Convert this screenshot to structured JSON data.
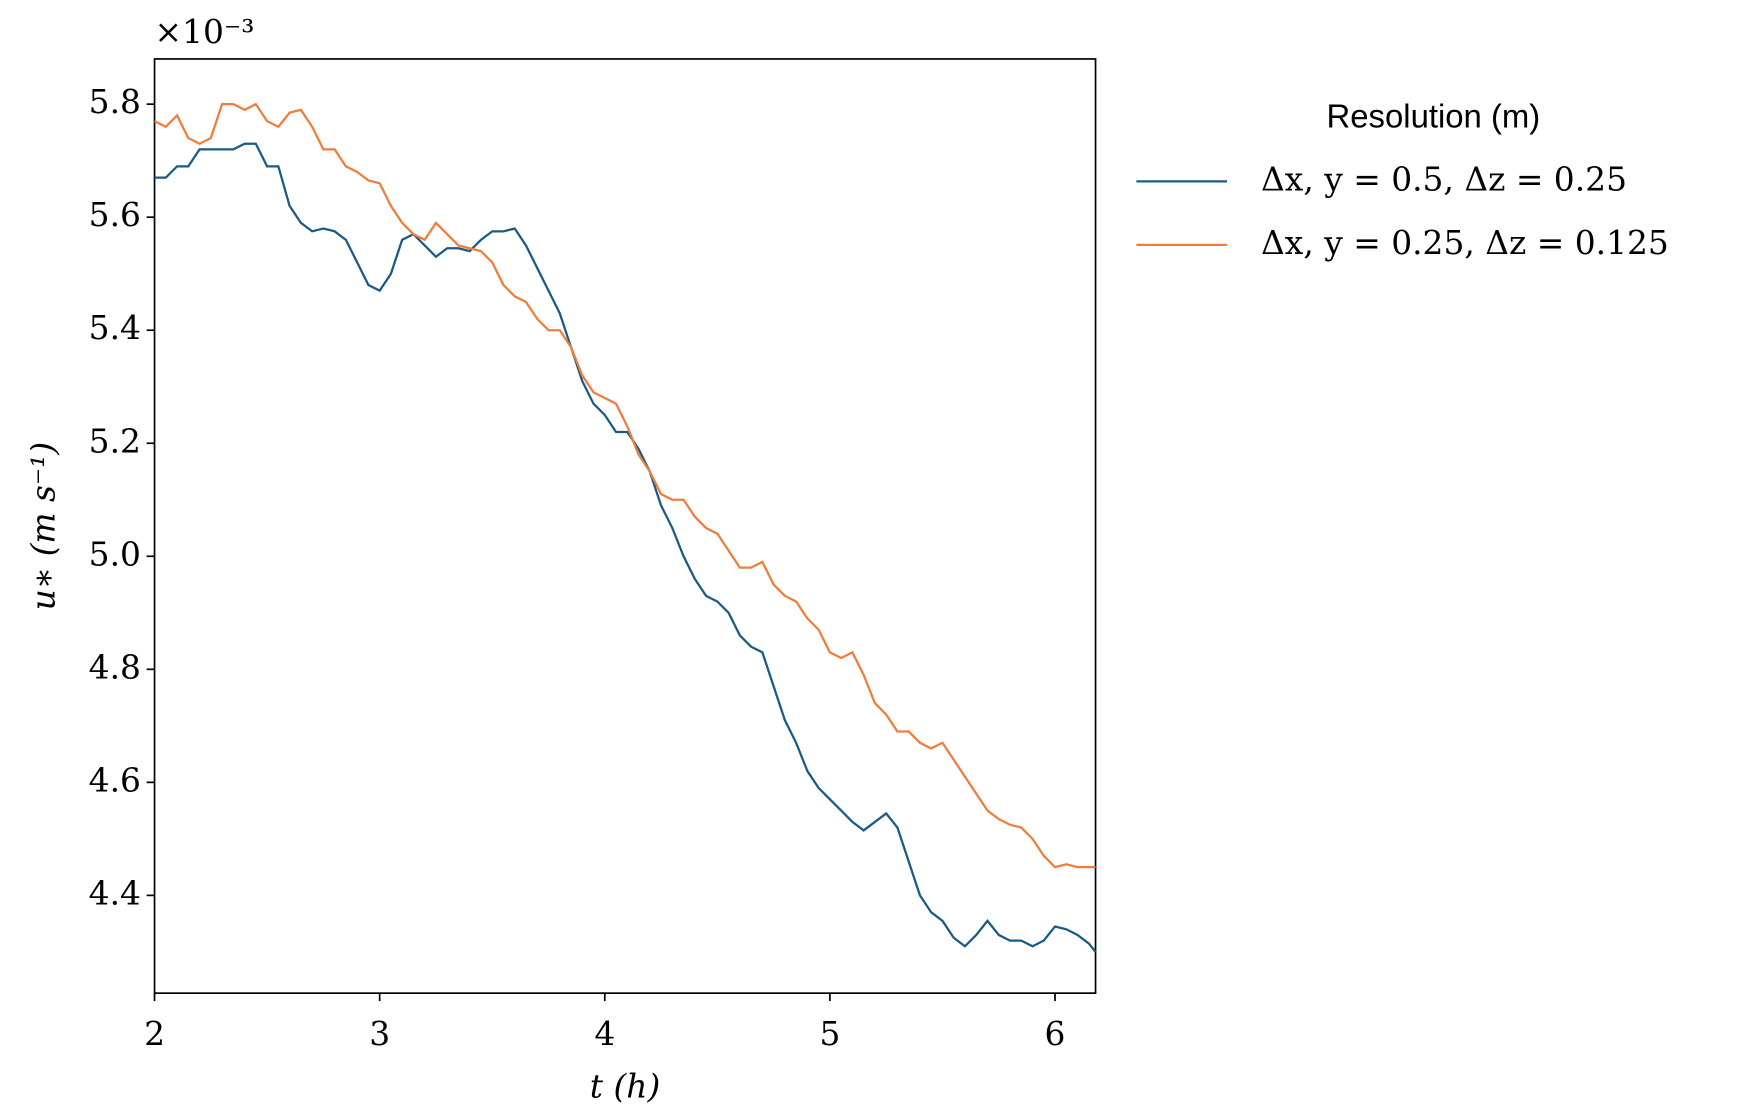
{
  "chart_data": {
    "type": "line",
    "xlabel": "t (h)",
    "ylabel": "u∗ (m s⁻¹)",
    "y_offset_label": "×10⁻³",
    "legend_title": "Resolution (m)",
    "legend": "outside upper right",
    "x": [
      2.0,
      2.05,
      2.1,
      2.15,
      2.2,
      2.25,
      2.3,
      2.35,
      2.4,
      2.45,
      2.5,
      2.55,
      2.6,
      2.65,
      2.7,
      2.75,
      2.8,
      2.85,
      2.9,
      2.95,
      3.0,
      3.05,
      3.1,
      3.15,
      3.2,
      3.25,
      3.3,
      3.35,
      3.4,
      3.45,
      3.5,
      3.55,
      3.6,
      3.65,
      3.7,
      3.75,
      3.8,
      3.85,
      3.9,
      3.95,
      4.0,
      4.05,
      4.1,
      4.15,
      4.2,
      4.25,
      4.3,
      4.35,
      4.4,
      4.45,
      4.5,
      4.55,
      4.6,
      4.65,
      4.7,
      4.75,
      4.8,
      4.85,
      4.9,
      4.95,
      5.0,
      5.05,
      5.1,
      5.15,
      5.2,
      5.25,
      5.3,
      5.35,
      5.4,
      5.45,
      5.5,
      5.55,
      5.6,
      5.65,
      5.7,
      5.75,
      5.8,
      5.85,
      5.9,
      5.95,
      6.0,
      6.05,
      6.1,
      6.15,
      6.18
    ],
    "series": [
      {
        "name": "Δx, y = 0.5, Δz = 0.25",
        "color": "#1a5b86",
        "values": [
          5.67,
          5.67,
          5.69,
          5.69,
          5.72,
          5.72,
          5.72,
          5.72,
          5.73,
          5.73,
          5.69,
          5.69,
          5.62,
          5.59,
          5.575,
          5.58,
          5.575,
          5.56,
          5.52,
          5.48,
          5.47,
          5.5,
          5.56,
          5.57,
          5.55,
          5.53,
          5.545,
          5.545,
          5.54,
          5.56,
          5.575,
          5.575,
          5.58,
          5.55,
          5.51,
          5.47,
          5.43,
          5.37,
          5.31,
          5.27,
          5.25,
          5.22,
          5.22,
          5.19,
          5.15,
          5.09,
          5.05,
          5.0,
          4.96,
          4.93,
          4.92,
          4.9,
          4.86,
          4.84,
          4.83,
          4.77,
          4.71,
          4.67,
          4.62,
          4.59,
          4.57,
          4.55,
          4.53,
          4.515,
          4.53,
          4.545,
          4.52,
          4.46,
          4.4,
          4.37,
          4.355,
          4.325,
          4.31,
          4.33,
          4.355,
          4.33,
          4.32,
          4.32,
          4.31,
          4.32,
          4.345,
          4.34,
          4.33,
          4.315,
          4.3
        ]
      },
      {
        "name": "Δx, y = 0.25, Δz = 0.125",
        "color": "#f07d3c",
        "values": [
          5.77,
          5.76,
          5.78,
          5.74,
          5.73,
          5.74,
          5.8,
          5.8,
          5.79,
          5.8,
          5.77,
          5.76,
          5.785,
          5.79,
          5.76,
          5.72,
          5.72,
          5.69,
          5.68,
          5.665,
          5.66,
          5.62,
          5.59,
          5.57,
          5.56,
          5.59,
          5.57,
          5.55,
          5.545,
          5.54,
          5.52,
          5.48,
          5.46,
          5.45,
          5.42,
          5.4,
          5.4,
          5.37,
          5.32,
          5.29,
          5.28,
          5.27,
          5.23,
          5.18,
          5.15,
          5.11,
          5.1,
          5.1,
          5.07,
          5.05,
          5.04,
          5.01,
          4.98,
          4.98,
          4.99,
          4.95,
          4.93,
          4.92,
          4.89,
          4.87,
          4.83,
          4.82,
          4.83,
          4.79,
          4.74,
          4.72,
          4.69,
          4.69,
          4.67,
          4.66,
          4.67,
          4.64,
          4.61,
          4.58,
          4.55,
          4.535,
          4.525,
          4.52,
          4.5,
          4.47,
          4.45,
          4.455,
          4.45,
          4.45,
          4.45
        ]
      }
    ],
    "xlim": [
      2,
      6.18
    ],
    "ylim": [
      4.227,
      5.88
    ],
    "xticks": [
      2,
      3,
      4,
      5,
      6
    ],
    "yticks": [
      4.4,
      4.6,
      4.8,
      {
        "value": 5,
        "label": "5.0"
      },
      5.2,
      5.4,
      5.6,
      5.8
    ],
    "grid": false
  }
}
